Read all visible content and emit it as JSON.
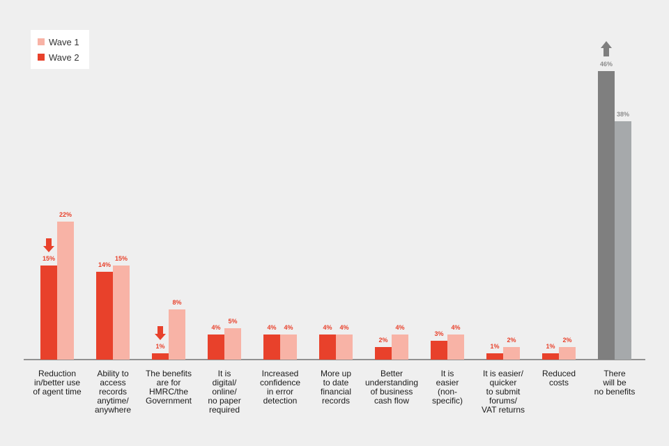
{
  "chart_data": {
    "type": "bar",
    "title": "",
    "xlabel": "",
    "ylabel": "",
    "ylim": [
      0,
      50
    ],
    "grid": false,
    "legend_position": "top-left",
    "categories": [
      [
        "Reduction",
        "in/better use",
        "of agent time"
      ],
      [
        "Ability to",
        "access",
        "records",
        "anytime/",
        "anywhere"
      ],
      [
        "The benefits",
        "are for",
        "HMRC/the",
        "Government"
      ],
      [
        "It is",
        "digital/",
        "online/",
        "no paper",
        "required"
      ],
      [
        "Increased",
        "confidence",
        "in error",
        "detection"
      ],
      [
        "More up",
        "to date",
        "financial",
        "records"
      ],
      [
        "Better",
        "understanding",
        "of business",
        "cash flow"
      ],
      [
        "It is",
        "easier",
        "(non-",
        "specific)"
      ],
      [
        "It is easier/",
        "quicker",
        "to submit",
        "forums/",
        "VAT returns"
      ],
      [
        "Reduced",
        "costs"
      ],
      [
        "There",
        "will be",
        "no benefits"
      ]
    ],
    "series": [
      {
        "name": "Wave 2",
        "values": [
          15,
          14,
          1,
          4,
          4,
          4,
          2,
          3,
          1,
          1,
          46
        ],
        "labels": [
          "15%",
          "14%",
          "1%",
          "4%",
          "4%",
          "4%",
          "2%",
          "3%",
          "1%",
          "1%",
          "46%"
        ]
      },
      {
        "name": "Wave 1",
        "values": [
          22,
          15,
          8,
          5,
          4,
          4,
          4,
          4,
          2,
          2,
          38
        ],
        "labels": [
          "22%",
          "15%",
          "8%",
          "5%",
          "4%",
          "4%",
          "4%",
          "4%",
          "2%",
          "2%",
          "38%"
        ]
      }
    ],
    "legend_order": [
      "Wave 1",
      "Wave 2"
    ],
    "significant_changes": [
      {
        "category_index": 0,
        "direction": "down",
        "icon": "arrow-down-icon",
        "color": "#e8412b"
      },
      {
        "category_index": 2,
        "direction": "down",
        "icon": "arrow-down-icon",
        "color": "#e8412b"
      },
      {
        "category_index": 10,
        "direction": "up",
        "icon": "arrow-up-icon",
        "color": "#7f7f7f"
      }
    ],
    "colors": {
      "wave2": "#e8412b",
      "wave1": "#f8b3a6",
      "wave2_highlight": "#7f7f7f",
      "wave1_highlight": "#a6a9ab",
      "label_wave": "#e8412b",
      "label_highlight": "#8c8c8c",
      "axis": "#333333"
    },
    "highlight_category_index": 10
  }
}
